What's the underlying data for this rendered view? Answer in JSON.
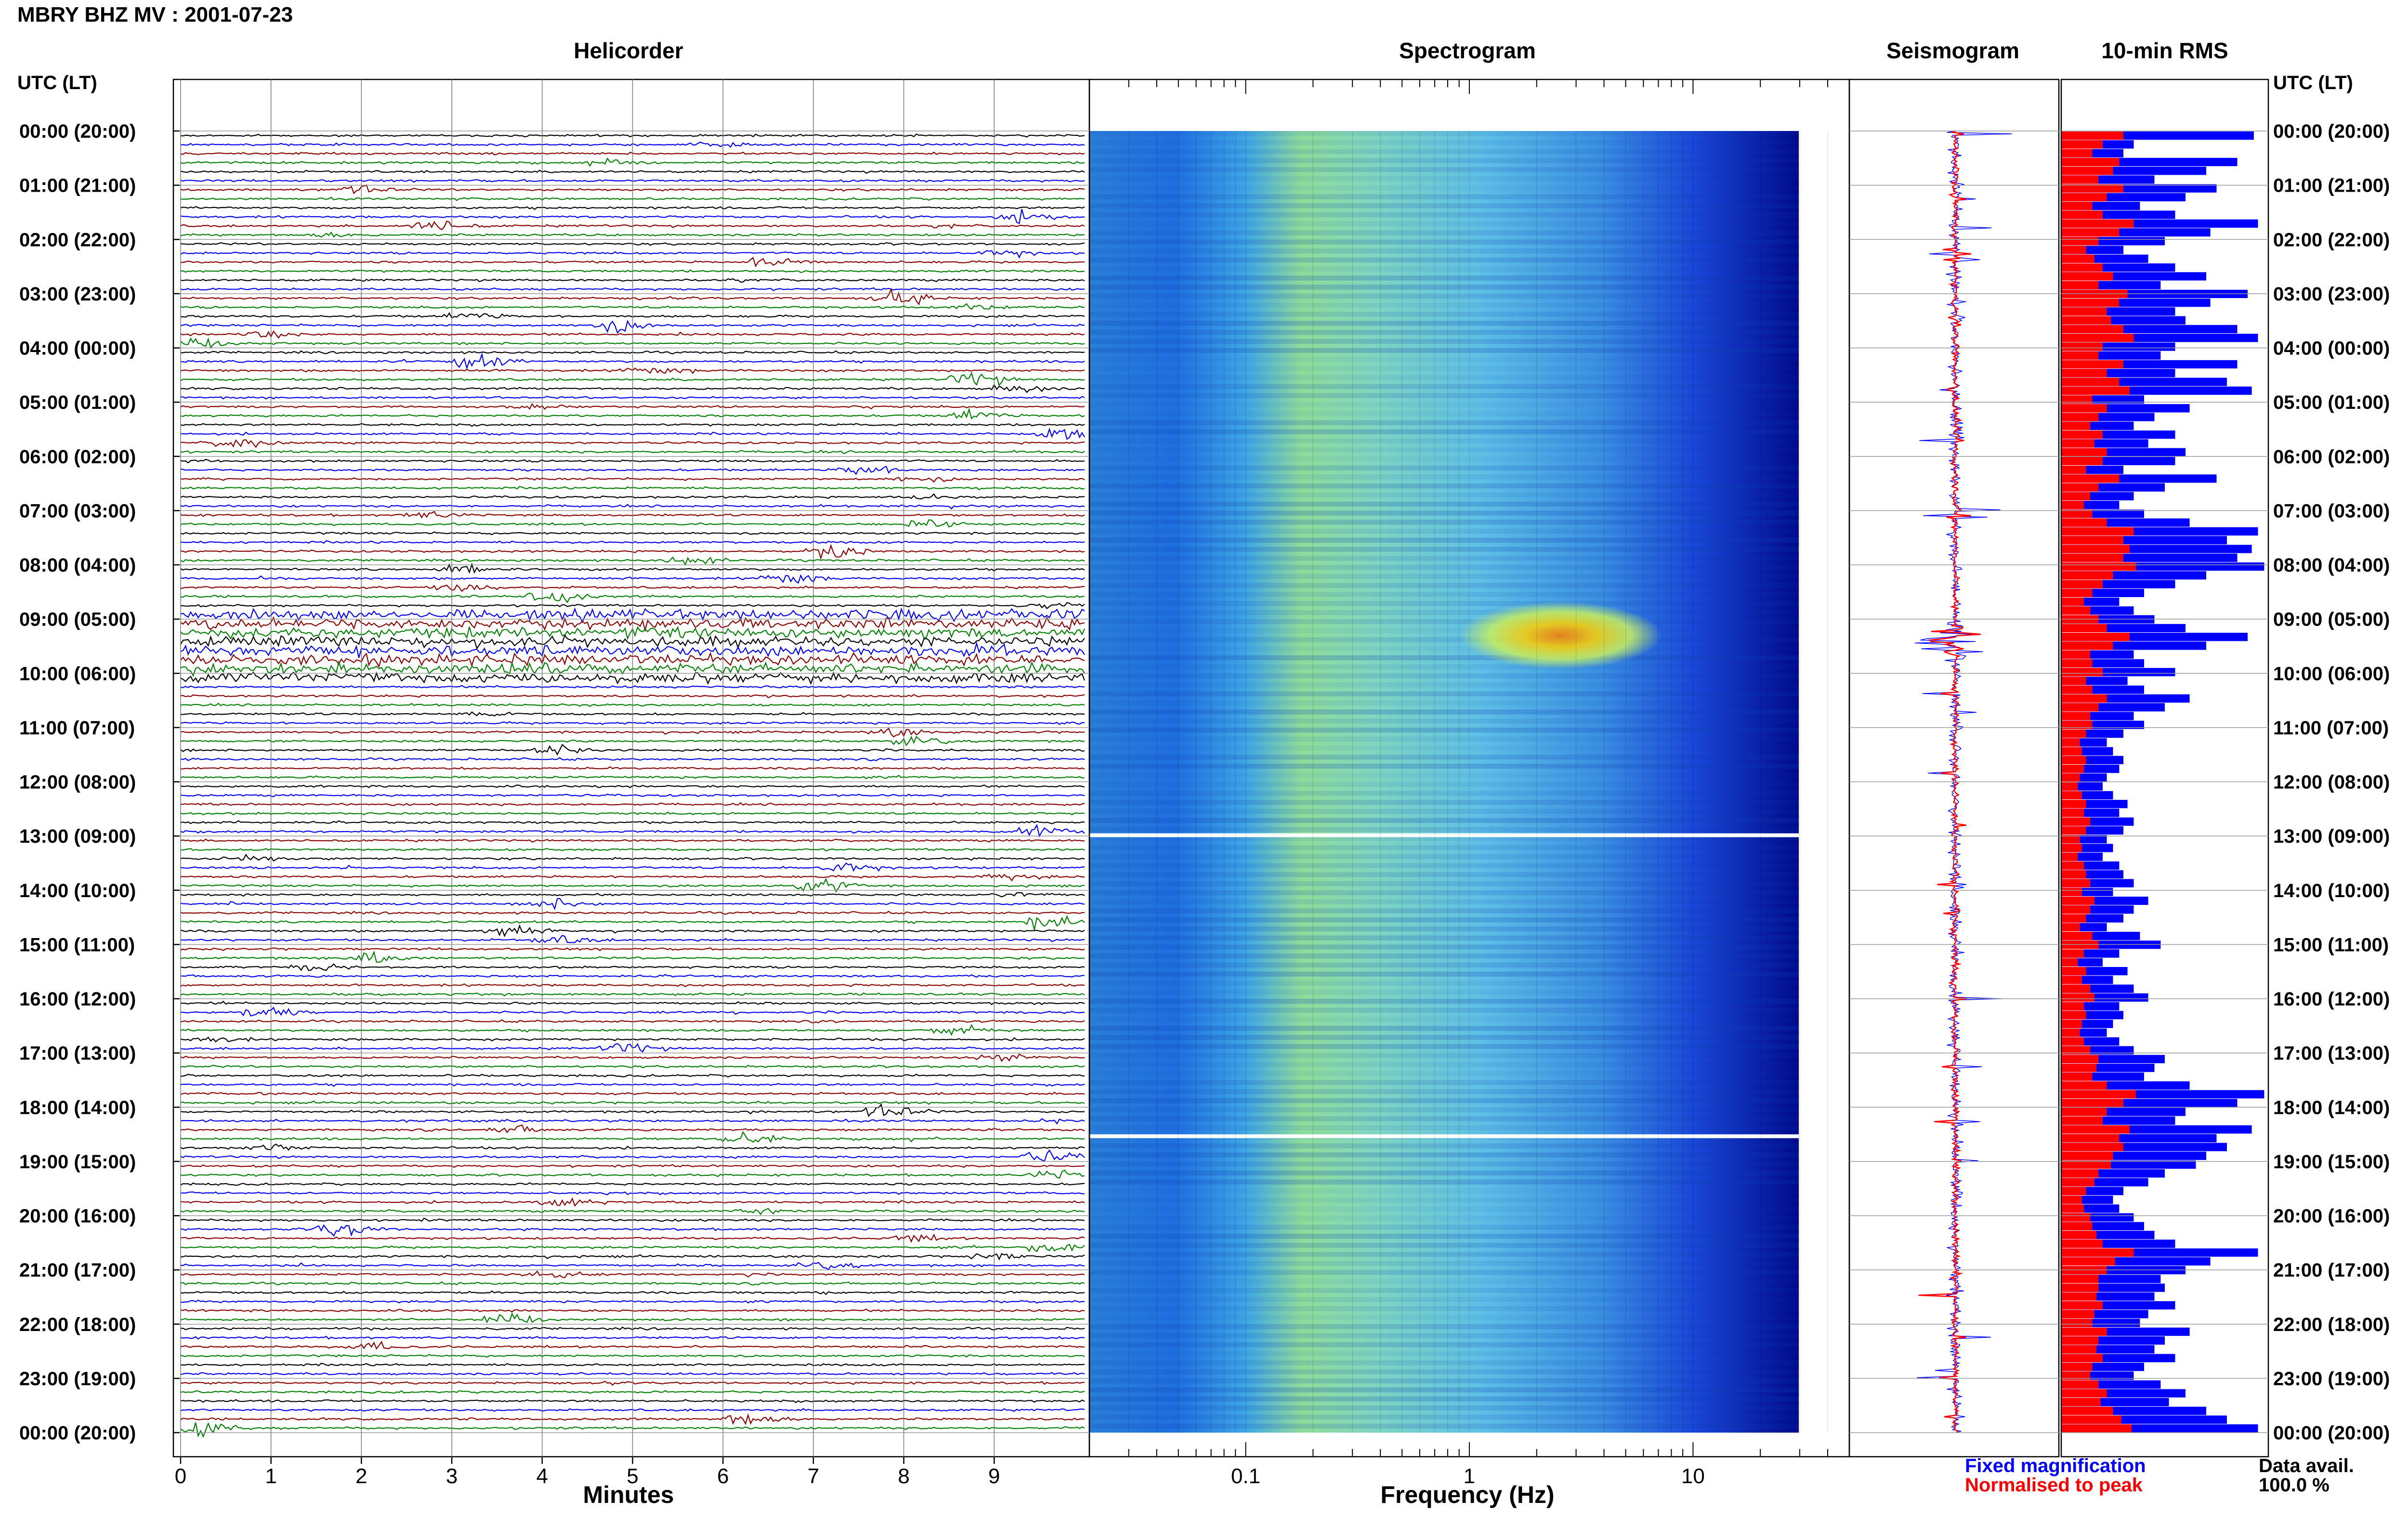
{
  "header": {
    "title": "MBRY BHZ MV : 2001-07-23"
  },
  "panels": {
    "helicorder_title": "Helicorder",
    "spectrogram_title": "Spectrogram",
    "seismogram_title": "Seismogram",
    "rms_title": "10-min RMS"
  },
  "axes": {
    "utc_label_left": "UTC (LT)",
    "utc_label_right": "UTC (LT)",
    "minutes_label": "Minutes",
    "frequency_label": "Frequency (Hz)"
  },
  "legend": {
    "fixed": "Fixed magnification",
    "peak": "Normalised to peak"
  },
  "data_avail": {
    "label": "Data avail.",
    "value": "100.0 %"
  },
  "colors": {
    "trace_cycle": [
      "#000000",
      "#0000ff",
      "#8b0000",
      "#008000"
    ],
    "fixed": "#0000ff",
    "peak": "#ff0000"
  },
  "chart_data": [
    {
      "panel": "helicorder",
      "type": "line",
      "xlabel": "Minutes",
      "x_ticks": [
        "0",
        "1",
        "2",
        "3",
        "4",
        "5",
        "6",
        "7",
        "8",
        "9"
      ],
      "xlim": [
        0,
        10
      ],
      "ylabel": "UTC (LT)",
      "y_ticks": [
        "00:00 (20:00)",
        "01:00 (21:00)",
        "02:00 (22:00)",
        "03:00 (23:00)",
        "04:00 (00:00)",
        "05:00 (01:00)",
        "06:00 (02:00)",
        "07:00 (03:00)",
        "08:00 (04:00)",
        "09:00 (05:00)",
        "10:00 (06:00)",
        "11:00 (07:00)",
        "12:00 (08:00)",
        "13:00 (09:00)",
        "14:00 (10:00)",
        "15:00 (11:00)",
        "16:00 (12:00)",
        "17:00 (13:00)",
        "18:00 (14:00)",
        "19:00 (15:00)",
        "20:00 (16:00)",
        "21:00 (17:00)",
        "22:00 (18:00)",
        "23:00 (19:00)",
        "00:00 (20:00)"
      ],
      "trace_minutes": 10,
      "traces_per_hour": 6
    },
    {
      "panel": "spectrogram",
      "type": "heatmap",
      "xlabel": "Frequency (Hz)",
      "x_scale": "log",
      "x_ticks": [
        "0.1",
        "1",
        "10"
      ],
      "xlim": [
        0.02,
        50
      ]
    },
    {
      "panel": "seismogram",
      "type": "line",
      "series": [
        {
          "name": "Fixed magnification"
        },
        {
          "name": "Normalised to peak"
        }
      ]
    },
    {
      "panel": "rms",
      "type": "bar",
      "series": [
        {
          "name": "Fixed magnification",
          "values": [
            0.93,
            0.35,
            0.3,
            0.85,
            0.7,
            0.45,
            0.75,
            0.6,
            0.38,
            0.55,
            0.95,
            0.72,
            0.5,
            0.3,
            0.42,
            0.55,
            0.7,
            0.48,
            0.9,
            0.72,
            0.55,
            0.6,
            0.85,
            0.95,
            0.55,
            0.48,
            0.85,
            0.55,
            0.8,
            0.92,
            0.4,
            0.62,
            0.45,
            0.35,
            0.55,
            0.42,
            0.6,
            0.55,
            0.3,
            0.75,
            0.5,
            0.35,
            0.28,
            0.4,
            0.62,
            0.95,
            0.8,
            0.92,
            0.85,
            0.98,
            0.7,
            0.55,
            0.4,
            0.28,
            0.35,
            0.45,
            0.6,
            0.9,
            0.7,
            0.35,
            0.4,
            0.55,
            0.32,
            0.4,
            0.62,
            0.5,
            0.35,
            0.4,
            0.3,
            0.22,
            0.25,
            0.3,
            0.28,
            0.22,
            0.2,
            0.25,
            0.32,
            0.28,
            0.35,
            0.3,
            0.22,
            0.25,
            0.2,
            0.28,
            0.3,
            0.35,
            0.25,
            0.42,
            0.35,
            0.3,
            0.22,
            0.38,
            0.48,
            0.28,
            0.2,
            0.32,
            0.25,
            0.35,
            0.42,
            0.28,
            0.3,
            0.25,
            0.22,
            0.28,
            0.35,
            0.5,
            0.45,
            0.4,
            0.62,
            0.98,
            0.85,
            0.6,
            0.55,
            0.92,
            0.75,
            0.8,
            0.7,
            0.65,
            0.5,
            0.42,
            0.3,
            0.25,
            0.28,
            0.35,
            0.4,
            0.45,
            0.55,
            0.95,
            0.72,
            0.6,
            0.48,
            0.5,
            0.45,
            0.55,
            0.42,
            0.38,
            0.62,
            0.5,
            0.45,
            0.55,
            0.4,
            0.35,
            0.48,
            0.6,
            0.52,
            0.7,
            0.8,
            0.95
          ]
        },
        {
          "name": "Normalised to peak",
          "values": [
            0.3,
            0.2,
            0.15,
            0.28,
            0.25,
            0.18,
            0.3,
            0.22,
            0.15,
            0.2,
            0.35,
            0.28,
            0.18,
            0.12,
            0.16,
            0.2,
            0.25,
            0.18,
            0.32,
            0.28,
            0.22,
            0.24,
            0.3,
            0.35,
            0.2,
            0.18,
            0.3,
            0.22,
            0.28,
            0.33,
            0.15,
            0.22,
            0.18,
            0.14,
            0.2,
            0.16,
            0.22,
            0.2,
            0.12,
            0.28,
            0.18,
            0.14,
            0.11,
            0.15,
            0.22,
            0.35,
            0.3,
            0.33,
            0.3,
            0.36,
            0.25,
            0.2,
            0.15,
            0.11,
            0.14,
            0.18,
            0.22,
            0.33,
            0.25,
            0.14,
            0.15,
            0.2,
            0.12,
            0.15,
            0.22,
            0.18,
            0.14,
            0.15,
            0.12,
            0.09,
            0.1,
            0.12,
            0.11,
            0.09,
            0.08,
            0.1,
            0.12,
            0.11,
            0.14,
            0.12,
            0.09,
            0.1,
            0.08,
            0.11,
            0.12,
            0.14,
            0.1,
            0.16,
            0.14,
            0.12,
            0.09,
            0.15,
            0.18,
            0.11,
            0.08,
            0.12,
            0.1,
            0.14,
            0.16,
            0.11,
            0.12,
            0.1,
            0.09,
            0.11,
            0.14,
            0.18,
            0.17,
            0.15,
            0.22,
            0.36,
            0.3,
            0.22,
            0.2,
            0.33,
            0.28,
            0.3,
            0.25,
            0.24,
            0.18,
            0.16,
            0.12,
            0.1,
            0.11,
            0.14,
            0.15,
            0.17,
            0.2,
            0.35,
            0.26,
            0.22,
            0.18,
            0.18,
            0.17,
            0.2,
            0.16,
            0.15,
            0.22,
            0.18,
            0.17,
            0.2,
            0.15,
            0.14,
            0.18,
            0.22,
            0.19,
            0.25,
            0.29,
            0.34
          ]
        }
      ]
    }
  ]
}
